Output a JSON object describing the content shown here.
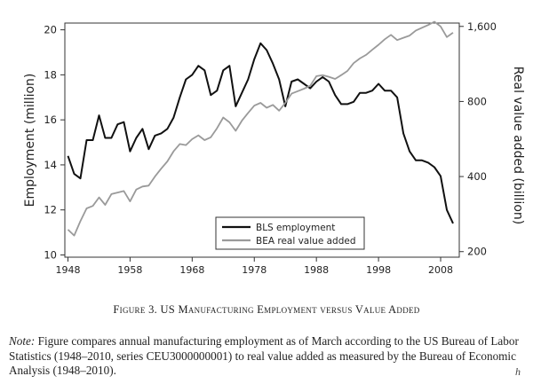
{
  "chart_data": {
    "type": "line",
    "title": "",
    "xlabel": "",
    "ylabel": "Employment (million)",
    "y2label": "Real value added (billion)",
    "xlim": [
      1947.5,
      2011
    ],
    "ylim": [
      9.9,
      20.3
    ],
    "y2lim": [
      190,
      1650
    ],
    "x_ticks": [
      1948,
      1958,
      1968,
      1978,
      1988,
      1998,
      2008
    ],
    "y_ticks": [
      10,
      12,
      14,
      16,
      18,
      20
    ],
    "y2_ticks": [
      200,
      400,
      800,
      1600
    ],
    "y2_tick_labels": [
      "200",
      "400",
      "800",
      "1,600"
    ],
    "y2_scale": "log",
    "grid": false,
    "legend_position": "bottom-center",
    "series": [
      {
        "name": "BLS employment",
        "axis": "left",
        "color": "#111111",
        "x": [
          1948,
          1949,
          1950,
          1951,
          1952,
          1953,
          1954,
          1955,
          1956,
          1957,
          1958,
          1959,
          1960,
          1961,
          1962,
          1963,
          1964,
          1965,
          1966,
          1967,
          1968,
          1969,
          1970,
          1971,
          1972,
          1973,
          1974,
          1975,
          1976,
          1977,
          1978,
          1979,
          1980,
          1981,
          1982,
          1983,
          1984,
          1985,
          1986,
          1987,
          1988,
          1989,
          1990,
          1991,
          1992,
          1993,
          1994,
          1995,
          1996,
          1997,
          1998,
          1999,
          2000,
          2001,
          2002,
          2003,
          2004,
          2005,
          2006,
          2007,
          2008,
          2009,
          2010
        ],
        "y": [
          14.4,
          13.6,
          13.4,
          15.1,
          15.1,
          16.2,
          15.2,
          15.2,
          15.8,
          15.9,
          14.6,
          15.2,
          15.6,
          14.7,
          15.3,
          15.4,
          15.6,
          16.1,
          17.0,
          17.8,
          18.0,
          18.4,
          18.2,
          17.1,
          17.3,
          18.2,
          18.4,
          16.6,
          17.2,
          17.8,
          18.7,
          19.4,
          19.1,
          18.5,
          17.8,
          16.6,
          17.7,
          17.8,
          17.6,
          17.4,
          17.7,
          17.9,
          17.7,
          17.1,
          16.7,
          16.7,
          16.8,
          17.2,
          17.2,
          17.3,
          17.6,
          17.3,
          17.3,
          17.0,
          15.4,
          14.6,
          14.2,
          14.2,
          14.1,
          13.9,
          13.5,
          12.0,
          11.4
        ]
      },
      {
        "name": "BEA real value added",
        "axis": "right",
        "color": "#9a9a9a",
        "x": [
          1948,
          1949,
          1950,
          1951,
          1952,
          1953,
          1954,
          1955,
          1956,
          1957,
          1958,
          1959,
          1960,
          1961,
          1962,
          1963,
          1964,
          1965,
          1966,
          1967,
          1968,
          1969,
          1970,
          1971,
          1972,
          1973,
          1974,
          1975,
          1976,
          1977,
          1978,
          1979,
          1980,
          1981,
          1982,
          1983,
          1984,
          1985,
          1986,
          1987,
          1988,
          1989,
          1990,
          1991,
          1992,
          1993,
          1994,
          1995,
          1996,
          1997,
          1998,
          1999,
          2000,
          2001,
          2002,
          2003,
          2004,
          2005,
          2006,
          2007,
          2008,
          2009,
          2010
        ],
        "y": [
          245,
          232,
          265,
          298,
          305,
          330,
          308,
          340,
          345,
          350,
          318,
          355,
          365,
          368,
          400,
          430,
          460,
          505,
          540,
          535,
          565,
          585,
          560,
          575,
          625,
          690,
          660,
          610,
          670,
          720,
          770,
          790,
          755,
          775,
          735,
          790,
          860,
          880,
          900,
          925,
          1010,
          1020,
          1005,
          985,
          1020,
          1060,
          1140,
          1190,
          1230,
          1290,
          1350,
          1420,
          1480,
          1410,
          1440,
          1470,
          1540,
          1580,
          1620,
          1670,
          1600,
          1450,
          1510
        ]
      }
    ]
  },
  "caption": {
    "prefix": "Figure 3. ",
    "text": "US Manufacturing Employment versus Value Added"
  },
  "note": {
    "label": "Note:",
    "text": " Figure compares annual manufacturing employment as of March according to the US Bureau of Labor Statistics (1948–2010, series CEU3000000001) to real value added as measured by the Bureau of Economic Analysis (1948–2010)."
  },
  "corner_mark": "h"
}
